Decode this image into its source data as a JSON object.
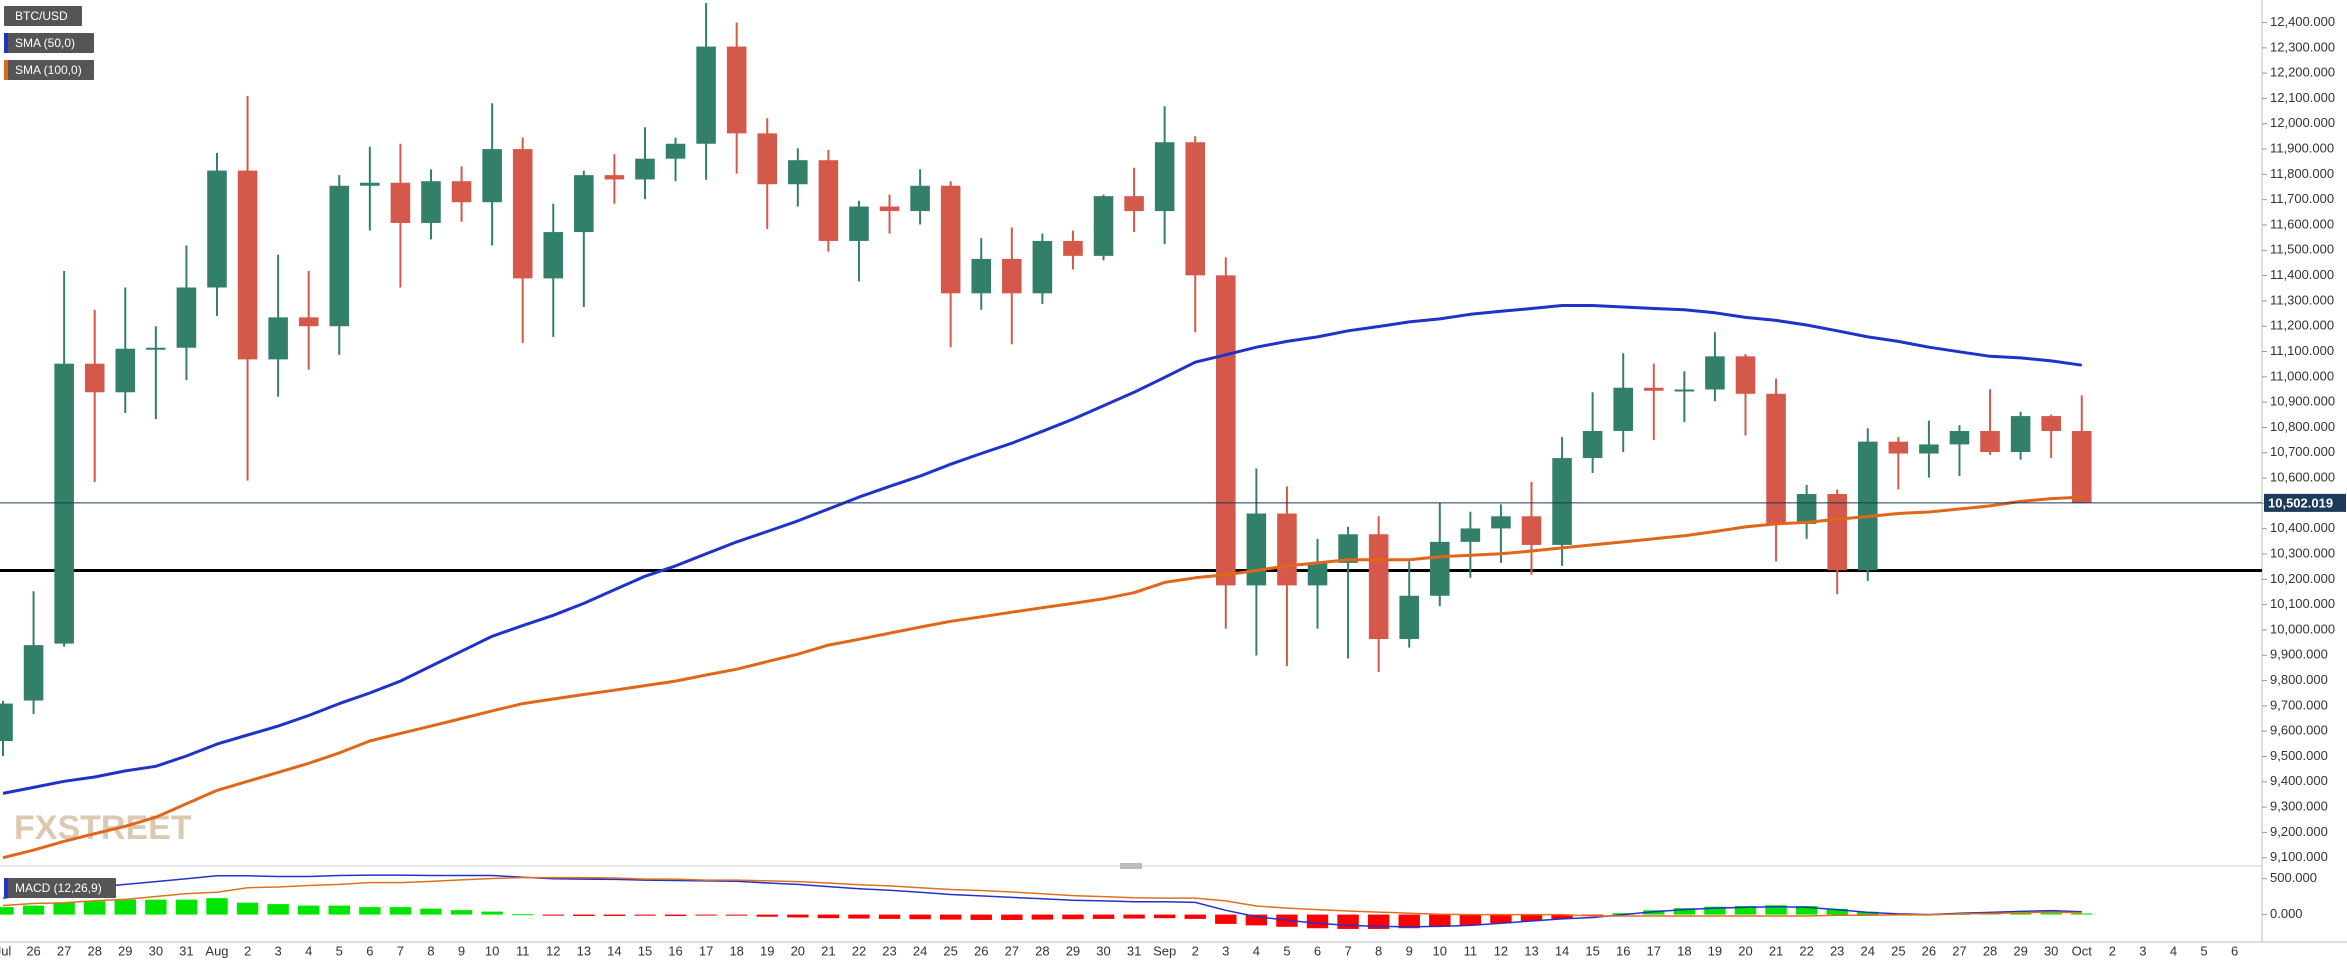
{
  "chart_data": [
    {
      "type": "candlestick",
      "title": "BTC/USD",
      "watermark": "FXSTREET",
      "categories": [
        "Jul",
        "26",
        "27",
        "28",
        "29",
        "30",
        "31",
        "Aug",
        "2",
        "3",
        "4",
        "5",
        "6",
        "7",
        "8",
        "9",
        "10",
        "11",
        "12",
        "13",
        "14",
        "15",
        "16",
        "17",
        "18",
        "19",
        "20",
        "21",
        "22",
        "23",
        "24",
        "25",
        "26",
        "27",
        "28",
        "29",
        "30",
        "31",
        "Sep",
        "2",
        "3",
        "4",
        "5",
        "6",
        "7",
        "8",
        "9",
        "10",
        "11",
        "12",
        "13",
        "14",
        "15",
        "16",
        "17",
        "18",
        "19",
        "20",
        "21",
        "22",
        "23",
        "24",
        "25",
        "26",
        "27",
        "28",
        "29",
        "30",
        "Oct",
        "2",
        "3",
        "4",
        "5",
        "6"
      ],
      "open": [
        9561,
        9721,
        9946,
        11052,
        10939,
        11111,
        11115,
        11353,
        11815,
        11069,
        11235,
        11200,
        11755,
        11767,
        11608,
        11773,
        11690,
        11900,
        11389,
        11572,
        11797,
        11780,
        11862,
        11921,
        12305,
        11962,
        11761,
        11856,
        11537,
        11673,
        11655,
        11755,
        11330,
        11466,
        11330,
        11537,
        11478,
        11714,
        11655,
        11927,
        11401,
        10176,
        10460,
        10176,
        10265,
        10378,
        9964,
        10135,
        10348,
        10401,
        10449,
        10336,
        10679,
        10786,
        10957,
        10945,
        10950,
        11081,
        10933,
        10419,
        10537,
        10236,
        10744,
        10697,
        10733,
        10786,
        10703,
        10845,
        10786,
        null,
        null,
        null,
        null,
        null
      ],
      "high": [
        9720,
        10153,
        11418,
        11265,
        11353,
        11200,
        11519,
        11885,
        12110,
        11483,
        11418,
        11797,
        11909,
        11921,
        11820,
        11832,
        12081,
        11945,
        11684,
        11815,
        11880,
        11986,
        11945,
        12477,
        12400,
        12022,
        11903,
        11897,
        11696,
        11720,
        11820,
        11773,
        11548,
        11590,
        11566,
        11578,
        11720,
        11826,
        12069,
        11951,
        11472,
        10638,
        10567,
        10360,
        10407,
        10449,
        10271,
        10502,
        10467,
        10496,
        10585,
        10762,
        10939,
        11093,
        11052,
        11022,
        11176,
        11090,
        10993,
        10573,
        10555,
        10797,
        10762,
        10827,
        10809,
        10951,
        10862,
        10851,
        10927,
        null,
        null,
        null,
        null,
        null
      ],
      "low": [
        9502,
        9668,
        9934,
        10585,
        10857,
        10833,
        10987,
        11241,
        10590,
        10922,
        11028,
        11087,
        11578,
        11353,
        11543,
        11613,
        11519,
        11134,
        11158,
        11276,
        11684,
        11702,
        11773,
        11779,
        11803,
        11584,
        11673,
        11495,
        11377,
        11566,
        11602,
        11117,
        11265,
        11129,
        11288,
        11424,
        11460,
        11572,
        11525,
        11176,
        10005,
        9899,
        9857,
        10005,
        9887,
        9834,
        9930,
        10094,
        10206,
        10265,
        10218,
        10253,
        10620,
        10703,
        10750,
        10821,
        10904,
        10768,
        10271,
        10360,
        10141,
        10194,
        10555,
        10602,
        10608,
        10691,
        10673,
        10679,
        10500,
        null,
        null,
        null,
        null,
        null
      ],
      "close": [
        9709,
        9940,
        11052,
        10939,
        11111,
        11115,
        11353,
        11815,
        11069,
        11235,
        11200,
        11755,
        11767,
        11608,
        11773,
        11690,
        11900,
        11389,
        11572,
        11797,
        11780,
        11862,
        11921,
        12305,
        11962,
        11761,
        11856,
        11537,
        11673,
        11655,
        11755,
        11330,
        11466,
        11330,
        11537,
        11478,
        11714,
        11655,
        11927,
        11401,
        10176,
        10460,
        10176,
        10265,
        10378,
        9964,
        10135,
        10348,
        10401,
        10449,
        10336,
        10679,
        10786,
        10957,
        10945,
        10950,
        11081,
        10933,
        10419,
        10537,
        10236,
        10744,
        10697,
        10733,
        10786,
        10703,
        10845,
        10786,
        10502.019,
        null,
        null,
        null,
        null,
        null
      ],
      "up_color": "#33806a",
      "down_color": "#d5594a",
      "series": [
        {
          "name": "SMA (50,0)",
          "color": "#1f33c9",
          "values": [
            9354,
            9378,
            9402,
            9419,
            9443,
            9461,
            9502,
            9549,
            9585,
            9620,
            9662,
            9709,
            9751,
            9798,
            9857,
            9916,
            9975,
            10017,
            10058,
            10105,
            10159,
            10212,
            10253,
            10301,
            10348,
            10389,
            10431,
            10478,
            10525,
            10567,
            10608,
            10655,
            10697,
            10738,
            10785,
            10833,
            10886,
            10939,
            10998,
            11058,
            11087,
            11117,
            11140,
            11158,
            11182,
            11199,
            11217,
            11229,
            11247,
            11259,
            11270,
            11282,
            11282,
            11276,
            11270,
            11265,
            11253,
            11235,
            11223,
            11205,
            11182,
            11158,
            11140,
            11117,
            11099,
            11081,
            11075,
            11063,
            11046,
            null,
            null,
            null,
            null,
            null
          ]
        },
        {
          "name": "SMA (100,0)",
          "color": "#e0661a",
          "values": [
            9100,
            9130,
            9165,
            9195,
            9224,
            9260,
            9313,
            9366,
            9402,
            9437,
            9473,
            9514,
            9561,
            9591,
            9620,
            9650,
            9680,
            9709,
            9727,
            9745,
            9762,
            9780,
            9798,
            9822,
            9845,
            9875,
            9904,
            9940,
            9963,
            9987,
            10011,
            10034,
            10052,
            10070,
            10088,
            10105,
            10123,
            10147,
            10188,
            10206,
            10218,
            10235,
            10253,
            10265,
            10277,
            10277,
            10277,
            10289,
            10295,
            10301,
            10312,
            10324,
            10336,
            10348,
            10360,
            10372,
            10389,
            10407,
            10419,
            10425,
            10437,
            10448,
            10460,
            10466,
            10478,
            10490,
            10508,
            10519,
            10525,
            null,
            null,
            null,
            null,
            null
          ]
        }
      ],
      "hline": 10235,
      "hline_color": "#000000",
      "last_value": 10502.019,
      "last_value_label": "10,502.019",
      "last_value_color": "#1b3a5c",
      "ylim": [
        9087,
        12489
      ],
      "yticks": [
        {
          "value": 9100,
          "label": "9,100.000"
        },
        {
          "value": 9200,
          "label": "9,200.000"
        },
        {
          "value": 9300,
          "label": "9,300.000"
        },
        {
          "value": 9400,
          "label": "9,400.000"
        },
        {
          "value": 9500,
          "label": "9,500.000"
        },
        {
          "value": 9600,
          "label": "9,600.000"
        },
        {
          "value": 9700,
          "label": "9,700.000"
        },
        {
          "value": 9800,
          "label": "9,800.000"
        },
        {
          "value": 9900,
          "label": "9,900.000"
        },
        {
          "value": 10000,
          "label": "10,000.000"
        },
        {
          "value": 10100,
          "label": "10,100.000"
        },
        {
          "value": 10200,
          "label": "10,200.000"
        },
        {
          "value": 10300,
          "label": "10,300.000"
        },
        {
          "value": 10400,
          "label": "10,400.000"
        },
        {
          "value": 10500,
          "label": "10,500.000"
        },
        {
          "value": 10600,
          "label": "10,600.000"
        },
        {
          "value": 10700,
          "label": "10,700.000"
        },
        {
          "value": 10800,
          "label": "10,800.000"
        },
        {
          "value": 10900,
          "label": "10,900.000"
        },
        {
          "value": 11000,
          "label": "11,000.000"
        },
        {
          "value": 11100,
          "label": "11,100.000"
        },
        {
          "value": 11200,
          "label": "11,200.000"
        },
        {
          "value": 11300,
          "label": "11,300.000"
        },
        {
          "value": 11400,
          "label": "11,400.000"
        },
        {
          "value": 11500,
          "label": "11,500.000"
        },
        {
          "value": 11600,
          "label": "11,600.000"
        },
        {
          "value": 11700,
          "label": "11,700.000"
        },
        {
          "value": 11800,
          "label": "11,800.000"
        },
        {
          "value": 11900,
          "label": "11,900.000"
        },
        {
          "value": 12000,
          "label": "12,000.000"
        },
        {
          "value": 12100,
          "label": "12,100.000"
        },
        {
          "value": 12200,
          "label": "12,200.000"
        },
        {
          "value": 12300,
          "label": "12,300.000"
        },
        {
          "value": 12400,
          "label": "12,400.000"
        }
      ]
    },
    {
      "type": "macd",
      "title": "MACD (12,26,9)",
      "histogram": {
        "up_color": "#00e600",
        "down_color": "#ff0000",
        "values": [
          104,
          125,
          166,
          187,
          208,
          208,
          208,
          229,
          166,
          146,
          125,
          125,
          104,
          104,
          83,
          62,
          42,
          5,
          -15,
          -20,
          -20,
          -15,
          -20,
          -10,
          -15,
          -30,
          -40,
          -50,
          -55,
          -60,
          -65,
          -70,
          -75,
          -75,
          -70,
          -65,
          -60,
          -55,
          -50,
          -60,
          -130,
          -150,
          -170,
          -190,
          -200,
          -200,
          -190,
          -170,
          -150,
          -120,
          -90,
          -60,
          -20,
          20,
          60,
          90,
          110,
          120,
          130,
          120,
          80,
          40,
          15,
          5,
          10,
          15,
          20,
          20,
          15,
          null,
          null,
          null,
          null,
          null
        ]
      },
      "series": [
        {
          "color": "#2233cc",
          "values": [
            230,
            280,
            330,
            380,
            420,
            460,
            500,
            540,
            540,
            530,
            530,
            545,
            550,
            550,
            545,
            545,
            545,
            520,
            500,
            495,
            490,
            480,
            475,
            470,
            465,
            440,
            420,
            390,
            360,
            340,
            310,
            280,
            260,
            240,
            220,
            200,
            190,
            180,
            180,
            170,
            60,
            -30,
            -80,
            -120,
            -150,
            -165,
            -170,
            -165,
            -150,
            -120,
            -90,
            -60,
            -40,
            0,
            40,
            70,
            90,
            100,
            110,
            100,
            70,
            30,
            10,
            0,
            20,
            30,
            45,
            55,
            40,
            null,
            null,
            null,
            null,
            null
          ]
        },
        {
          "color": "#e07020",
          "values": [
            126,
            155,
            164,
            193,
            212,
            252,
            292,
            311,
            374,
            384,
            405,
            420,
            446,
            446,
            462,
            483,
            503,
            515,
            515,
            515,
            510,
            495,
            495,
            480,
            480,
            470,
            460,
            440,
            415,
            400,
            375,
            350,
            335,
            315,
            290,
            265,
            250,
            235,
            230,
            230,
            190,
            120,
            90,
            70,
            50,
            35,
            20,
            5,
            0,
            0,
            0,
            0,
            -20,
            -20,
            -20,
            -20,
            -20,
            -20,
            -20,
            -20,
            -10,
            -10,
            -5,
            -5,
            10,
            15,
            25,
            35,
            25,
            null,
            null,
            null,
            null,
            null
          ]
        }
      ],
      "ylim": [
        -382,
        677
      ],
      "yticks": [
        {
          "value": 500,
          "label": "500.000"
        },
        {
          "value": 0,
          "label": "0.000"
        }
      ]
    }
  ]
}
